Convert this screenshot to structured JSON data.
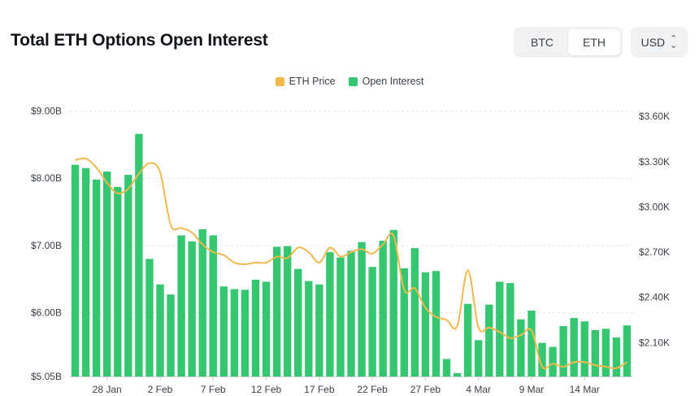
{
  "header": {
    "title": "Total ETH Options Open Interest",
    "asset_options": [
      "BTC",
      "ETH"
    ],
    "selected_asset": "ETH",
    "currency": "USD"
  },
  "chart_data": {
    "type": "bar",
    "title": "Total ETH Options Open Interest",
    "legend_placement": "top",
    "grid": true,
    "x_tick_labels": [
      "28 Jan",
      "2 Feb",
      "7 Feb",
      "12 Feb",
      "17 Feb",
      "22 Feb",
      "27 Feb",
      "4 Mar",
      "9 Mar",
      "14 Mar"
    ],
    "x_tick_index": [
      3,
      8,
      13,
      18,
      23,
      28,
      33,
      38,
      43,
      48
    ],
    "y_left": {
      "ticks": [
        "$5.05B",
        "$6.00B",
        "$7.00B",
        "$8.00B",
        "$9.00B"
      ],
      "tick_values": [
        5.05,
        6.0,
        7.0,
        8.0,
        9.0
      ],
      "range": [
        5.05,
        9.2
      ]
    },
    "y_right": {
      "ticks": [
        "$2.10K",
        "$2.40K",
        "$2.70K",
        "$3.00K",
        "$3.30K",
        "$3.60K"
      ],
      "tick_values": [
        2.1,
        2.4,
        2.7,
        3.0,
        3.3,
        3.6
      ],
      "range": [
        1.875,
        3.725
      ]
    },
    "series": [
      {
        "name": "Open Interest",
        "type": "bar",
        "axis": "left",
        "color": "#34c76f",
        "values": [
          8.2,
          8.15,
          7.98,
          8.1,
          7.87,
          8.05,
          8.66,
          6.8,
          6.42,
          6.27,
          7.15,
          7.06,
          7.24,
          7.15,
          6.39,
          6.35,
          6.34,
          6.49,
          6.46,
          6.98,
          6.99,
          6.65,
          6.47,
          6.42,
          6.9,
          6.82,
          6.92,
          7.05,
          6.68,
          7.07,
          7.23,
          6.66,
          6.96,
          6.6,
          6.62,
          5.31,
          5.1,
          6.13,
          5.59,
          6.12,
          6.46,
          6.44,
          5.9,
          6.03,
          5.55,
          5.49,
          5.8,
          5.92,
          5.87,
          5.74,
          5.76,
          5.63,
          5.81
        ]
      },
      {
        "name": "ETH Price",
        "type": "line",
        "axis": "right",
        "color": "#f0b94d",
        "values": [
          3.31,
          3.32,
          3.26,
          3.16,
          3.09,
          3.12,
          3.22,
          3.29,
          3.23,
          2.88,
          2.86,
          2.83,
          2.75,
          2.7,
          2.68,
          2.63,
          2.62,
          2.63,
          2.63,
          2.67,
          2.66,
          2.73,
          2.7,
          2.63,
          2.73,
          2.67,
          2.7,
          2.72,
          2.69,
          2.75,
          2.81,
          2.45,
          2.46,
          2.33,
          2.27,
          2.25,
          2.21,
          2.58,
          2.2,
          2.2,
          2.17,
          2.13,
          2.15,
          2.18,
          1.94,
          1.96,
          1.94,
          1.97,
          1.97,
          1.95,
          1.94,
          1.93,
          1.97
        ]
      }
    ]
  }
}
